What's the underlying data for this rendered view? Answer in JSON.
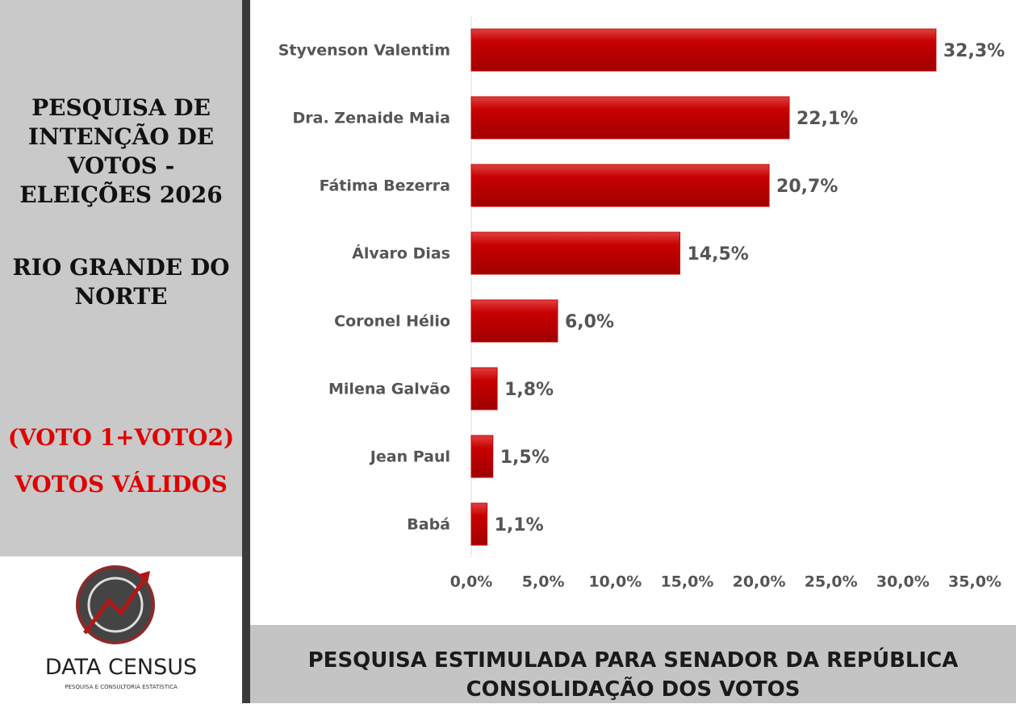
{
  "side_panel": {
    "title": "PESQUISA DE INTENÇÃO DE VOTOS - ELEIÇÕES 2026",
    "region": "RIO GRANDE DO NORTE",
    "note_lines": [
      "(VOTO 1+VOTO2)",
      "VOTOS VÁLIDOS"
    ],
    "logo_name": "DATA CENSUS",
    "logo_tagline": "PESQUISA E CONSULTORIA ESTATÍSTICA"
  },
  "chart_data": {
    "type": "bar",
    "horizontal": true,
    "color": "#c80000",
    "categories": [
      "Styvenson Valentim",
      "Dra. Zenaide Maia",
      "Fátima Bezerra",
      "Álvaro Dias",
      "Coronel Hélio",
      "Milena Galvão",
      "Jean Paul",
      "Babá"
    ],
    "values": [
      32.3,
      22.1,
      20.7,
      14.5,
      6.0,
      1.8,
      1.5,
      1.1
    ],
    "value_labels": [
      "32,3%",
      "22,1%",
      "20,7%",
      "14,5%",
      "6,0%",
      "1,8%",
      "1,5%",
      "1,1%"
    ],
    "xlim": [
      0,
      35
    ],
    "xticks": [
      {
        "value": 0,
        "label": "0,0%"
      },
      {
        "value": 5,
        "label": "5,0%"
      },
      {
        "value": 10,
        "label": "10,0%"
      },
      {
        "value": 15,
        "label": "15,0%"
      },
      {
        "value": 20,
        "label": "20,0%"
      },
      {
        "value": 25,
        "label": "25,0%"
      },
      {
        "value": 30,
        "label": "30,0%"
      },
      {
        "value": 35,
        "label": "35,0%"
      }
    ],
    "caption": [
      "PESQUISA ESTIMULADA PARA SENADOR DA REPÚBLICA",
      "CONSOLIDAÇÃO DOS VOTOS"
    ]
  }
}
